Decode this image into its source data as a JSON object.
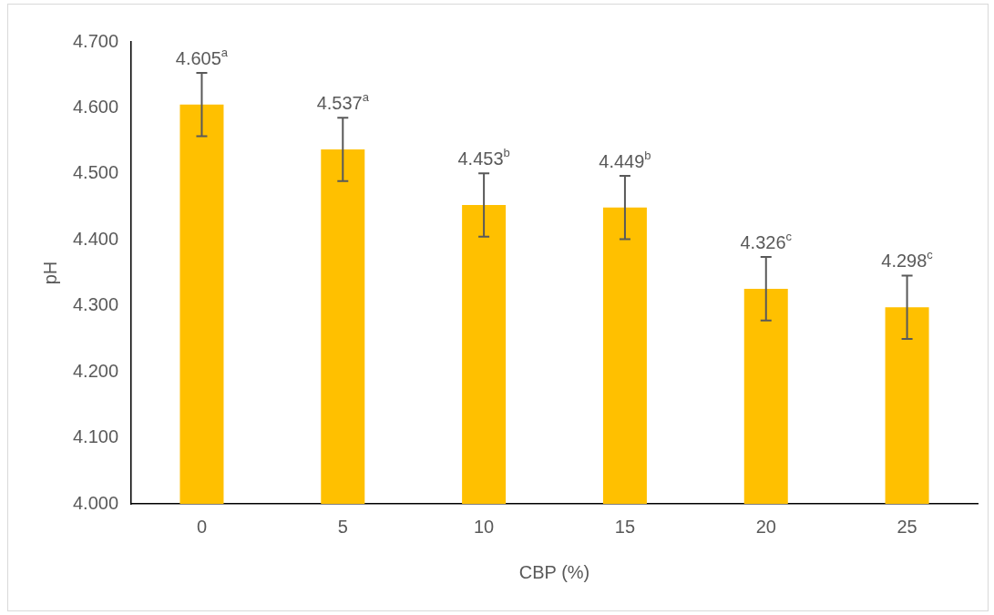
{
  "chart_data": {
    "type": "bar",
    "xlabel": "CBP (%)",
    "ylabel": "pH",
    "categories": [
      "0",
      "5",
      "10",
      "15",
      "20",
      "25"
    ],
    "values": [
      4.605,
      4.537,
      4.453,
      4.449,
      4.326,
      4.298
    ],
    "errors": [
      0.048,
      0.048,
      0.048,
      0.048,
      0.048,
      0.048
    ],
    "value_labels": [
      "4.605$^{a}$",
      "4.537$^{a}$",
      "4.453$^{b}$",
      "4.449$^{b}$",
      "4.326$^{c}$",
      "4.298$^{c}$"
    ],
    "color": "#ffc000",
    "ylim": [
      4,
      4.7
    ],
    "yticks": [
      {
        "value": 4,
        "label": "4.000"
      },
      {
        "value": 4.1,
        "label": "4.100"
      },
      {
        "value": 4.2,
        "label": "4.200"
      },
      {
        "value": 4.3,
        "label": "4.300"
      },
      {
        "value": 4.4,
        "label": "4.400"
      },
      {
        "value": 4.5,
        "label": "4.500"
      },
      {
        "value": 4.6,
        "label": "4.600"
      },
      {
        "value": 4.7,
        "label": "4.700"
      }
    ],
    "grid": false,
    "legend": false
  }
}
